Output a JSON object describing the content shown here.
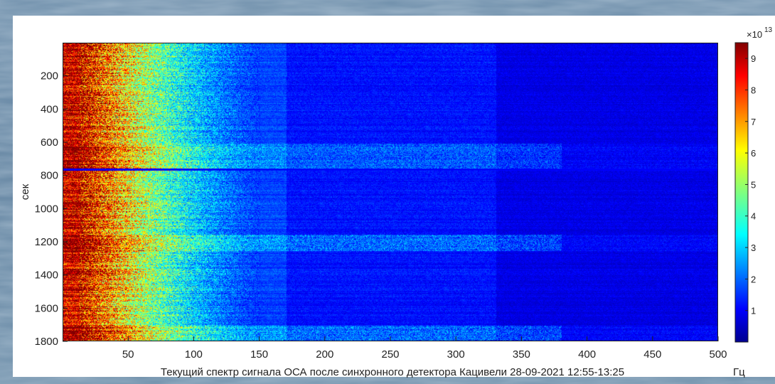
{
  "chart_data": {
    "type": "heatmap",
    "title": "",
    "xlabel": "Текущий спектр сигнала ОСА после синхронного детектора  Кацивели 28-09-2021 12:55-13:25",
    "x_unit": "Гц",
    "ylabel": "сек",
    "xlim": [
      0,
      500
    ],
    "ylim": [
      0,
      1800
    ],
    "y_reversed": true,
    "x_ticks": [
      50,
      100,
      150,
      200,
      250,
      300,
      350,
      400,
      450,
      500
    ],
    "y_ticks": [
      200,
      400,
      600,
      800,
      1000,
      1200,
      1400,
      1600,
      1800
    ],
    "colorbar": {
      "exponent_label": "×10",
      "exponent": "13",
      "range": [
        0,
        9.5
      ],
      "ticks": [
        1,
        2,
        3,
        4,
        5,
        6,
        7,
        8,
        9
      ],
      "colormap": "jet"
    },
    "features": [
      {
        "description_value": "high intensity band",
        "x_range_hz": [
          0,
          12
        ],
        "level": 9
      },
      {
        "description_value": "elevated low-frequency noise",
        "x_range_hz": [
          12,
          150
        ],
        "level": 3
      },
      {
        "description_value": "dark horizontal line",
        "time_s": 760
      }
    ]
  }
}
